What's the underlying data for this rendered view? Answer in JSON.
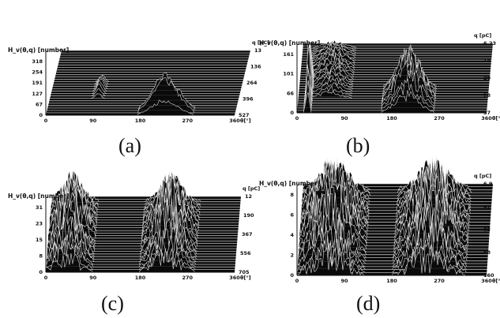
{
  "chart_data": [
    {
      "panel": "(a)",
      "type": "area",
      "ylabel": "H_v(θ,q) [number]",
      "xlabel": "θ[°]",
      "rlabel": "q [pC]",
      "xticks": [
        "0",
        "90",
        "180",
        "270",
        "360"
      ],
      "yticks": [
        "0",
        "67",
        "127",
        "191",
        "254",
        "318"
      ],
      "rticks": [
        "13",
        "136",
        "264",
        "396",
        "527"
      ],
      "xlim": [
        0,
        360
      ],
      "ylim": [
        0,
        390
      ],
      "clusters": [
        {
          "center": 92,
          "width": 16,
          "peak": 90,
          "q_front": 0.25,
          "q_back": 0.55
        },
        {
          "center": 227,
          "width": 75,
          "peak": 300,
          "q_front": 0.0,
          "q_back": 0.12
        }
      ]
    },
    {
      "panel": "(b)",
      "type": "area",
      "ylabel": "H_v(θ,q) [number]",
      "xlabel": "θ[°]",
      "rlabel": "q [pC]",
      "xticks": [
        "0",
        "90",
        "180",
        "270",
        "360"
      ],
      "yticks": [
        "0",
        "66",
        "101",
        "161"
      ],
      "rticks": [
        "6.23",
        "14",
        "20",
        "28",
        "37"
      ],
      "xlim": [
        0,
        360
      ],
      "ylim": [
        0,
        190
      ],
      "clusters": [
        {
          "center": 20,
          "width": 10,
          "peak": 200,
          "q_front": 0.0,
          "q_back": 0.5
        },
        {
          "center": 60,
          "width": 60,
          "peak": 60,
          "q_front": 0.2,
          "q_back": 0.95
        },
        {
          "center": 210,
          "width": 70,
          "peak": 170,
          "q_front": 0.0,
          "q_back": 0.4
        }
      ]
    },
    {
      "panel": "(c)",
      "type": "area",
      "ylabel": "H_v(θ,q) [number]",
      "xlabel": "θ[°]",
      "rlabel": "q [pC]",
      "xticks": [
        "0",
        "90",
        "180",
        "270",
        "360"
      ],
      "yticks": [
        "0",
        "8",
        "15",
        "23",
        "31"
      ],
      "rticks": [
        "12",
        "190",
        "367",
        "556",
        "705"
      ],
      "xlim": [
        0,
        360
      ],
      "ylim": [
        0,
        35
      ],
      "clusters": [
        {
          "center": 40,
          "width": 70,
          "peak": 26,
          "q_front": 0.0,
          "q_back": 0.95
        },
        {
          "center": 230,
          "width": 75,
          "peak": 26,
          "q_front": 0.0,
          "q_back": 0.95
        }
      ]
    },
    {
      "panel": "(d)",
      "type": "area",
      "ylabel": "H_v(θ,q) [number]",
      "xlabel": "θ[°]",
      "rlabel": "q [pC]",
      "xticks": [
        "0",
        "90",
        "180",
        "270",
        "360"
      ],
      "yticks": [
        "0",
        "2",
        "4",
        "6",
        "8"
      ],
      "rticks": [
        "6.9",
        "47",
        "83",
        "88",
        "160"
      ],
      "xlim": [
        0,
        360
      ],
      "ylim": [
        0,
        9
      ],
      "clusters": [
        {
          "center": 60,
          "width": 95,
          "peak": 7,
          "q_front": 0.0,
          "q_back": 0.95
        },
        {
          "center": 250,
          "width": 100,
          "peak": 7,
          "q_front": 0.0,
          "q_back": 0.95
        }
      ]
    }
  ]
}
